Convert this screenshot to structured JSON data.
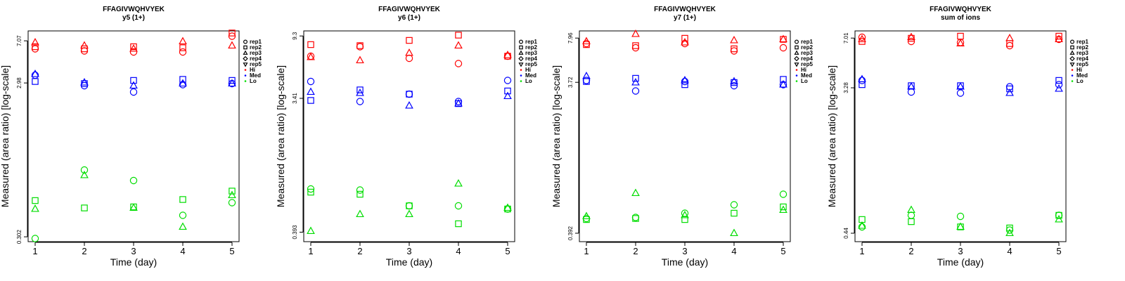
{
  "figure": {
    "marker_shapes": {
      "rep1": "circle",
      "rep2": "square",
      "rep3": "triangle-up",
      "rep4": "diamond",
      "rep5": "triangle-down"
    },
    "level_colors": {
      "Hi": "#ff0000",
      "Med": "#0000ff",
      "Lo": "#00dd00"
    },
    "legend_labels": [
      "rep1",
      "rep2",
      "rep3",
      "rep4",
      "rep5",
      "Hi",
      "Med",
      "Lo"
    ]
  },
  "chart_data": [
    {
      "type": "scatter",
      "title": "FFAGIVWQHVYEK",
      "subtitle": "y5 (1+)",
      "xlabel": "Time (day)",
      "ylabel": "Measured (area ratio) [log-scale]",
      "x": [
        1,
        2,
        3,
        4,
        5
      ],
      "x_ticks": [
        "1",
        "2",
        "3",
        "4",
        "5"
      ],
      "y_tick_labels": [
        "7.07",
        "2.98",
        "0.302"
      ],
      "ylim_frac": [
        0,
        1
      ],
      "y_tick_frac": [
        0.953,
        0.753,
        0.023
      ],
      "series": [
        {
          "level": "Hi",
          "rep": "rep1",
          "values": [
            0.915,
            0.905,
            0.9,
            0.9,
            0.975
          ]
        },
        {
          "level": "Hi",
          "rep": "rep2",
          "values": [
            0.925,
            0.915,
            0.925,
            0.92,
            0.99
          ]
        },
        {
          "level": "Hi",
          "rep": "rep3",
          "values": [
            0.945,
            0.93,
            0.915,
            0.95,
            0.93
          ]
        },
        {
          "level": "Med",
          "rep": "rep1",
          "values": [
            0.79,
            0.74,
            0.71,
            0.745,
            0.75
          ]
        },
        {
          "level": "Med",
          "rep": "rep2",
          "values": [
            0.76,
            0.75,
            0.765,
            0.77,
            0.765
          ]
        },
        {
          "level": "Med",
          "rep": "rep3",
          "values": [
            0.795,
            0.755,
            0.74,
            0.75,
            0.75
          ]
        },
        {
          "level": "Lo",
          "rep": "rep1",
          "values": [
            0.015,
            0.34,
            0.29,
            0.125,
            0.185
          ]
        },
        {
          "level": "Lo",
          "rep": "rep2",
          "values": [
            0.195,
            0.16,
            0.165,
            0.2,
            0.24
          ]
        },
        {
          "level": "Lo",
          "rep": "rep3",
          "values": [
            0.155,
            0.315,
            0.16,
            0.07,
            0.22
          ]
        }
      ]
    },
    {
      "type": "scatter",
      "title": "FFAGIVWQHVYEK",
      "subtitle": "y6 (1+)",
      "xlabel": "Time (day)",
      "ylabel": "Measured (area ratio) [log-scale]",
      "x": [
        1,
        2,
        3,
        4,
        5
      ],
      "x_ticks": [
        "1",
        "2",
        "3",
        "4",
        "5"
      ],
      "y_tick_labels": [
        "9.3",
        "3.41",
        "0.393"
      ],
      "ylim_frac": [
        0,
        1
      ],
      "y_tick_frac": [
        0.976,
        0.68,
        0.045
      ],
      "series": [
        {
          "level": "Hi",
          "rep": "rep1",
          "values": [
            0.88,
            0.925,
            0.87,
            0.845,
            0.88
          ]
        },
        {
          "level": "Hi",
          "rep": "rep2",
          "values": [
            0.935,
            0.93,
            0.955,
            0.98,
            0.88
          ]
        },
        {
          "level": "Hi",
          "rep": "rep3",
          "values": [
            0.875,
            0.86,
            0.895,
            0.93,
            0.885
          ]
        },
        {
          "level": "Med",
          "rep": "rep1",
          "values": [
            0.76,
            0.665,
            0.7,
            0.665,
            0.765
          ]
        },
        {
          "level": "Med",
          "rep": "rep2",
          "values": [
            0.67,
            0.72,
            0.7,
            0.655,
            0.715
          ]
        },
        {
          "level": "Med",
          "rep": "rep3",
          "values": [
            0.71,
            0.705,
            0.645,
            0.655,
            0.69
          ]
        },
        {
          "level": "Lo",
          "rep": "rep1",
          "values": [
            0.25,
            0.245,
            0.17,
            0.17,
            0.155
          ]
        },
        {
          "level": "Lo",
          "rep": "rep2",
          "values": [
            0.235,
            0.225,
            0.17,
            0.085,
            0.155
          ]
        },
        {
          "level": "Lo",
          "rep": "rep3",
          "values": [
            0.05,
            0.13,
            0.13,
            0.275,
            0.16
          ]
        }
      ]
    },
    {
      "type": "scatter",
      "title": "FFAGIVWQHVYEK",
      "subtitle": "y7 (1+)",
      "xlabel": "Time (day)",
      "ylabel": "Measured (area ratio) [log-scale]",
      "x": [
        1,
        2,
        3,
        4,
        5
      ],
      "x_ticks": [
        "1",
        "2",
        "3",
        "4",
        "5"
      ],
      "y_tick_labels": [
        "7.96",
        "3.72",
        "0.392"
      ],
      "ylim_frac": [
        0,
        1
      ],
      "y_tick_frac": [
        0.966,
        0.756,
        0.04
      ],
      "series": [
        {
          "level": "Hi",
          "rep": "rep1",
          "values": [
            0.94,
            0.92,
            0.94,
            0.905,
            0.92
          ]
        },
        {
          "level": "Hi",
          "rep": "rep2",
          "values": [
            0.935,
            0.93,
            0.965,
            0.915,
            0.96
          ]
        },
        {
          "level": "Hi",
          "rep": "rep3",
          "values": [
            0.95,
            0.985,
            0.945,
            0.955,
            0.96
          ]
        },
        {
          "level": "Med",
          "rep": "rep1",
          "values": [
            0.765,
            0.715,
            0.76,
            0.74,
            0.745
          ]
        },
        {
          "level": "Med",
          "rep": "rep2",
          "values": [
            0.76,
            0.775,
            0.745,
            0.755,
            0.77
          ]
        },
        {
          "level": "Med",
          "rep": "rep3",
          "values": [
            0.785,
            0.755,
            0.765,
            0.76,
            0.745
          ]
        },
        {
          "level": "Lo",
          "rep": "rep1",
          "values": [
            0.11,
            0.115,
            0.135,
            0.175,
            0.225
          ]
        },
        {
          "level": "Lo",
          "rep": "rep2",
          "values": [
            0.105,
            0.11,
            0.105,
            0.135,
            0.165
          ]
        },
        {
          "level": "Lo",
          "rep": "rep3",
          "values": [
            0.12,
            0.23,
            0.125,
            0.04,
            0.15
          ]
        }
      ]
    },
    {
      "type": "scatter",
      "title": "FFAGIVWQHVYEK",
      "subtitle": "sum of ions",
      "xlabel": "Time (day)",
      "ylabel": "Measured (area ratio) [log-scale]",
      "x": [
        1,
        2,
        3,
        4,
        5
      ],
      "x_ticks": [
        "1",
        "2",
        "3",
        "4",
        "5"
      ],
      "y_tick_labels": [
        "7.01",
        "3.28",
        "0.44"
      ],
      "ylim_frac": [
        0,
        1
      ],
      "y_tick_frac": [
        0.966,
        0.73,
        0.04
      ],
      "series": [
        {
          "level": "Hi",
          "rep": "rep1",
          "values": [
            0.97,
            0.95,
            0.945,
            0.93,
            0.96
          ]
        },
        {
          "level": "Hi",
          "rep": "rep2",
          "values": [
            0.95,
            0.965,
            0.975,
            0.94,
            0.975
          ]
        },
        {
          "level": "Hi",
          "rep": "rep3",
          "values": [
            0.96,
            0.97,
            0.94,
            0.965,
            0.96
          ]
        },
        {
          "level": "Med",
          "rep": "rep1",
          "values": [
            0.765,
            0.71,
            0.705,
            0.735,
            0.745
          ]
        },
        {
          "level": "Med",
          "rep": "rep2",
          "values": [
            0.745,
            0.74,
            0.74,
            0.725,
            0.765
          ]
        },
        {
          "level": "Med",
          "rep": "rep3",
          "values": [
            0.77,
            0.735,
            0.735,
            0.705,
            0.725
          ]
        },
        {
          "level": "Lo",
          "rep": "rep1",
          "values": [
            0.07,
            0.125,
            0.12,
            0.055,
            0.125
          ]
        },
        {
          "level": "Lo",
          "rep": "rep2",
          "values": [
            0.105,
            0.095,
            0.07,
            0.065,
            0.125
          ]
        },
        {
          "level": "Lo",
          "rep": "rep3",
          "values": [
            0.075,
            0.15,
            0.07,
            0.04,
            0.105
          ]
        }
      ]
    }
  ]
}
